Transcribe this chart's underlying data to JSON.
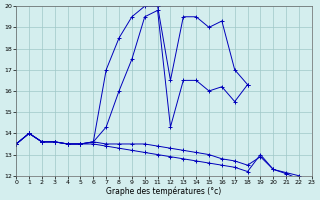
{
  "xlabel": "Graphe des températures (°c)",
  "bg_color": "#d4eeee",
  "line_color": "#0000bb",
  "grid_color": "#a0c8c8",
  "xlim": [
    0,
    23
  ],
  "ylim": [
    12,
    20
  ],
  "yticks": [
    12,
    13,
    14,
    15,
    16,
    17,
    18,
    19,
    20
  ],
  "xticks": [
    0,
    1,
    2,
    3,
    4,
    5,
    6,
    7,
    8,
    9,
    10,
    11,
    12,
    13,
    14,
    15,
    16,
    17,
    18,
    19,
    20,
    21,
    22,
    23
  ],
  "series": [
    {
      "x": [
        0,
        1,
        2,
        3,
        4,
        5,
        6,
        7,
        8,
        9,
        10,
        11,
        12,
        13,
        14,
        15,
        16,
        17,
        18
      ],
      "y": [
        13.5,
        14.0,
        13.6,
        13.6,
        13.5,
        13.5,
        13.6,
        17.0,
        18.5,
        19.5,
        20.0,
        20.0,
        16.5,
        19.5,
        19.5,
        19.0,
        19.3,
        17.0,
        16.3
      ]
    },
    {
      "x": [
        0,
        1,
        2,
        3,
        4,
        5,
        6,
        7,
        8,
        9,
        10,
        11,
        12,
        13,
        14,
        15,
        16,
        17,
        18
      ],
      "y": [
        13.5,
        14.0,
        13.6,
        13.6,
        13.5,
        13.5,
        13.6,
        14.3,
        16.0,
        17.5,
        19.5,
        19.8,
        14.3,
        16.5,
        16.5,
        16.0,
        16.2,
        15.5,
        16.3
      ]
    },
    {
      "x": [
        0,
        1,
        2,
        3,
        4,
        5,
        6,
        7,
        8,
        9,
        10,
        11,
        12,
        13,
        14,
        15,
        16,
        17,
        18,
        19,
        20,
        21,
        22
      ],
      "y": [
        13.5,
        14.0,
        13.6,
        13.6,
        13.5,
        13.5,
        13.6,
        13.5,
        13.5,
        13.5,
        13.5,
        13.4,
        13.3,
        13.2,
        13.1,
        13.0,
        12.8,
        12.7,
        12.5,
        12.9,
        12.3,
        12.1,
        11.85
      ]
    },
    {
      "x": [
        0,
        1,
        2,
        3,
        4,
        5,
        6,
        7,
        8,
        9,
        10,
        11,
        12,
        13,
        14,
        15,
        16,
        17,
        18,
        19,
        20,
        21,
        22
      ],
      "y": [
        13.5,
        14.0,
        13.6,
        13.6,
        13.5,
        13.5,
        13.5,
        13.4,
        13.3,
        13.2,
        13.1,
        13.0,
        12.9,
        12.8,
        12.7,
        12.6,
        12.5,
        12.4,
        12.2,
        13.0,
        12.3,
        12.15,
        12.0
      ]
    }
  ]
}
